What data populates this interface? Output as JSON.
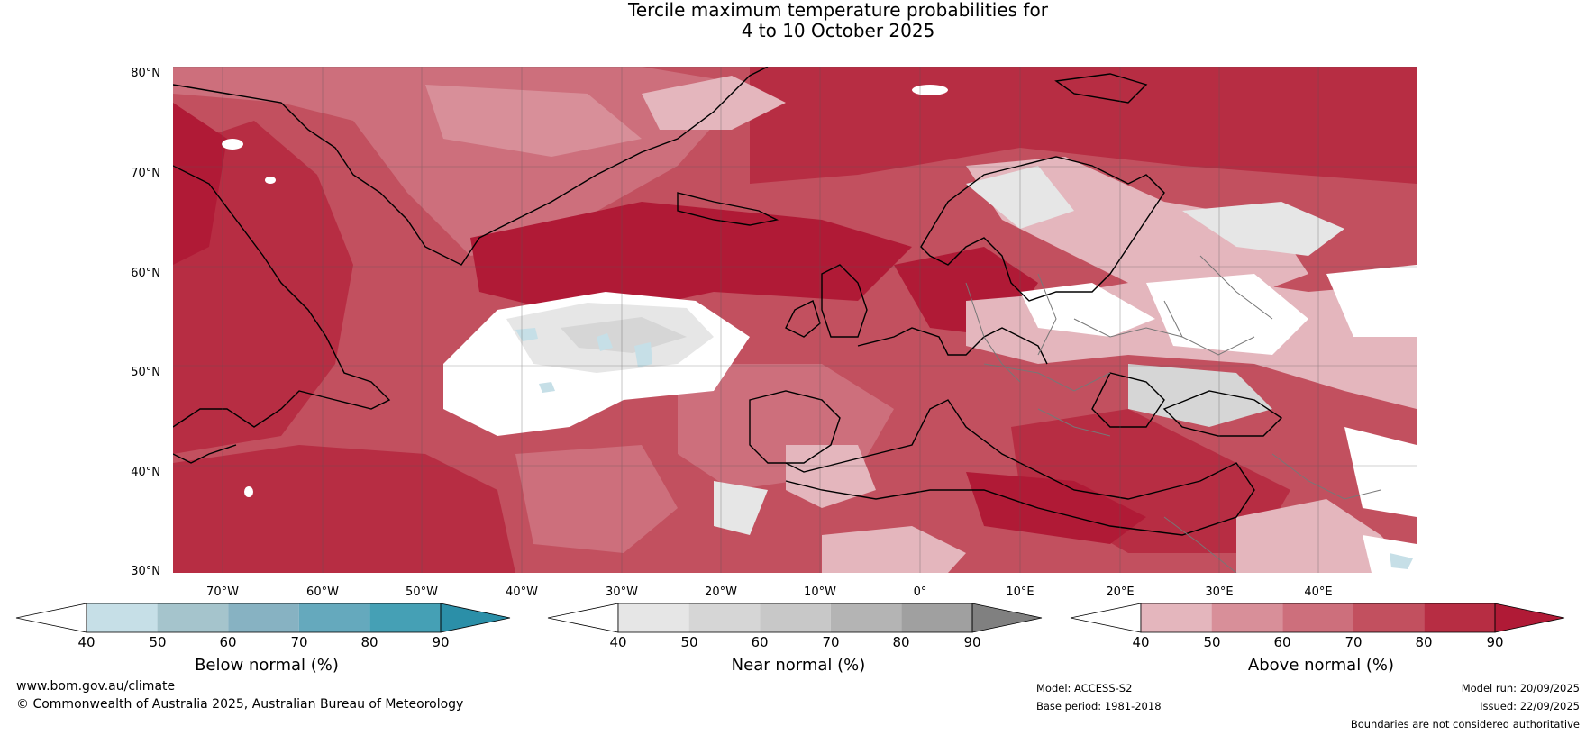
{
  "title": {
    "line1": "Tercile maximum temperature probabilities for",
    "line2": "4 to 10 October 2025"
  },
  "map": {
    "lat_labels": [
      "80°N",
      "70°N",
      "60°N",
      "50°N",
      "40°N",
      "30°N"
    ],
    "lon_labels": [
      "70°W",
      "60°W",
      "50°W",
      "40°W",
      "30°W",
      "20°W",
      "10°W",
      "0°",
      "10°E",
      "20°E",
      "30°E",
      "40°E"
    ],
    "colors": {
      "above": [
        "#e4b6bd",
        "#d88f99",
        "#cd6f7c",
        "#c2505f",
        "#b72d43",
        "#b01a36"
      ],
      "near": [
        "#e6e6e6",
        "#d6d6d6",
        "#c8c8c8",
        "#b4b4b4",
        "#a0a0a0",
        "#808080"
      ],
      "below": [
        "#c6dfe7",
        "#a5c4cc",
        "#87b2c2",
        "#65a9bd",
        "#45a0b5",
        "#2b8fa8"
      ],
      "coastline": "#000000",
      "borders": "#777777",
      "gridlines": "#555555"
    }
  },
  "legends": [
    {
      "title": "Below normal (%)",
      "ticks": [
        "40",
        "50",
        "60",
        "70",
        "80",
        "90"
      ],
      "colors": [
        "#c6dfe7",
        "#a5c4cc",
        "#87b2c2",
        "#65a9bd",
        "#45a0b5",
        "#2b8fa8"
      ]
    },
    {
      "title": "Near normal (%)",
      "ticks": [
        "40",
        "50",
        "60",
        "70",
        "80",
        "90"
      ],
      "colors": [
        "#e6e6e6",
        "#d6d6d6",
        "#c8c8c8",
        "#b4b4b4",
        "#a0a0a0",
        "#808080"
      ]
    },
    {
      "title": "Above normal (%)",
      "ticks": [
        "40",
        "50",
        "60",
        "70",
        "80",
        "90"
      ],
      "colors": [
        "#e4b6bd",
        "#d88f99",
        "#cd6f7c",
        "#c2505f",
        "#b72d43",
        "#b01a36"
      ]
    }
  ],
  "footer": {
    "website": "www.bom.gov.au/climate",
    "copyright": "© Commonwealth of Australia 2025, Australian Bureau of Meteorology",
    "model": "Model: ACCESS-S2",
    "base_period": "Base period: 1981-2018",
    "model_run": "Model run: 20/09/2025",
    "issued": "Issued: 22/09/2025",
    "disclaimer": "Boundaries are not considered authoritative"
  }
}
